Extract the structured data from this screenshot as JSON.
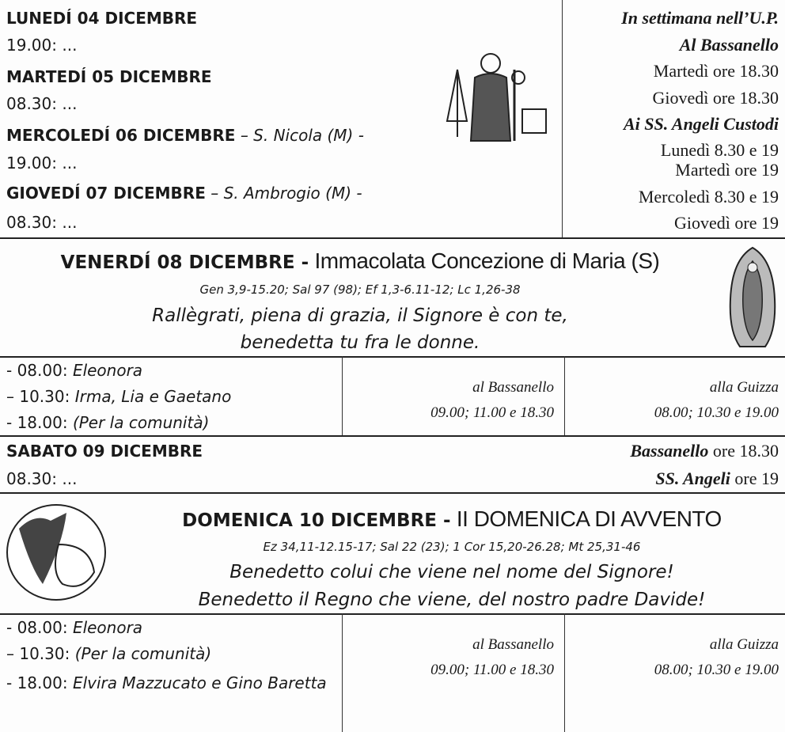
{
  "weekdays": {
    "days": [
      {
        "day": "LUNEDÍ 04 DICEMBRE",
        "time": "19.00: ..."
      },
      {
        "day": "MARTEDÍ 05 DICEMBRE",
        "time": "08.30: ..."
      },
      {
        "day": "MERCOLEDÍ 06 DICEMBRE",
        "saint": "– S. Nicola (M) -",
        "time": "19.00: ..."
      },
      {
        "day": "GIOVEDÍ 07 DICEMBRE",
        "saint": "– S. Ambrogio (M) -",
        "time": "08.30: ..."
      }
    ],
    "up": {
      "heading": "In settimana nell’U.P.",
      "places": [
        {
          "name": "Al Bassanello",
          "times": [
            "Martedì ore 18.30",
            "Giovedì ore 18.30"
          ]
        },
        {
          "name": "Ai SS. Angeli Custodi",
          "times": [
            "Lunedì 8.30 e 19",
            "Martedì ore 19",
            "Mercoledì 8.30 e 19",
            "Giovedì ore 19"
          ]
        }
      ]
    }
  },
  "friday": {
    "day": "VENERDÍ 08 DICEMBRE -",
    "feast": "Immacolata Concezione di Maria (S)",
    "readings": "Gen 3,9-15.20; Sal 97 (98); Ef 1,3-6.11-12; Lc 1,26-38",
    "antiphon": [
      "Rallègrati, piena di grazia, il Signore è con te,",
      "benedetta tu fra le donne."
    ],
    "masses": [
      {
        "time": "- 08.00:",
        "intention": "Eleonora"
      },
      {
        "time": "– 10.30:",
        "intention": "Irma, Lia e Gaetano"
      },
      {
        "time": "- 18.00:",
        "intention": "(Per la comunità)"
      }
    ],
    "other": [
      {
        "place": "al Bassanello",
        "times": "09.00; 11.00 e 18.30"
      },
      {
        "place": "alla Guizza",
        "times": "08.00; 10.30 e 19.00"
      }
    ]
  },
  "saturday": {
    "day": "SABATO 09 DICEMBRE",
    "time": "08.30: ...",
    "evening": [
      {
        "place": "Bassanello",
        "time": "ore 18.30"
      },
      {
        "place": "SS. Angeli",
        "time": "ore 19"
      }
    ]
  },
  "sunday": {
    "day": "DOMENICA 10 DICEMBRE -",
    "feast": "II DOMENICA DI AVVENTO",
    "readings": "Ez 34,11-12.15-17; Sal 22 (23); 1 Cor 15,20-26.28; Mt 25,31-46",
    "antiphon": [
      "Benedetto colui che viene nel nome del Signore!",
      "Benedetto il Regno che viene, del nostro padre Davide!"
    ],
    "masses": [
      {
        "time": "- 08.00:",
        "intention": "Eleonora"
      },
      {
        "time": "– 10.30:",
        "intention": "(Per la comunità)"
      },
      {
        "time": "- 18.00:",
        "intention": "Elvira Mazzucato e Gino Baretta"
      }
    ],
    "other": [
      {
        "place": "al Bassanello",
        "times": "09.00; 11.00 e 18.30"
      },
      {
        "place": "alla Guizza",
        "times": "08.00; 10.30 e 19.00"
      }
    ]
  }
}
